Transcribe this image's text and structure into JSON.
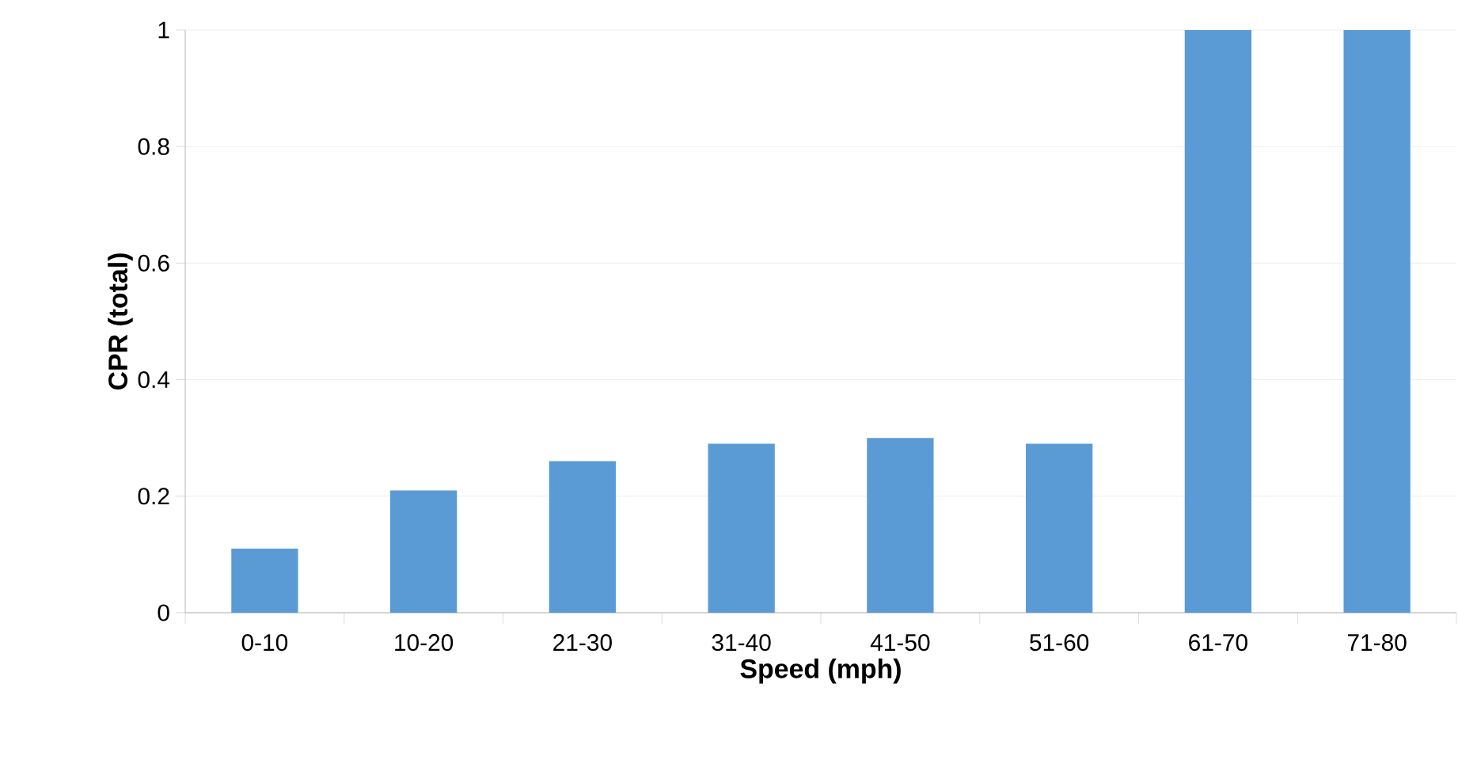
{
  "chart_data": {
    "type": "bar",
    "xlabel": "Speed (mph)",
    "ylabel": "CPR (total)",
    "categories": [
      "0-10",
      "10-20",
      "21-30",
      "31-40",
      "41-50",
      "51-60",
      "61-70",
      "71-80"
    ],
    "values": [
      0.11,
      0.21,
      0.26,
      0.29,
      0.3,
      0.29,
      1,
      1
    ],
    "color": "#5b9bd5",
    "ylim": [
      0,
      1
    ],
    "yticks": [
      0,
      0.2,
      0.4,
      0.6,
      0.8,
      1
    ],
    "grid": "y"
  }
}
